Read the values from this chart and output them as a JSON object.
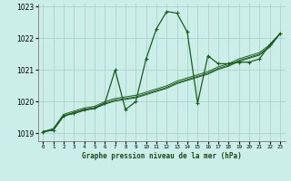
{
  "title": "Graphe pression niveau de la mer (hPa)",
  "background_color": "#cceee8",
  "grid_color": "#aad4ce",
  "line_color": "#1a5c1a",
  "x_values": [
    0,
    1,
    2,
    3,
    4,
    5,
    6,
    7,
    8,
    9,
    10,
    11,
    12,
    13,
    14,
    15,
    16,
    17,
    18,
    19,
    20,
    21,
    22,
    23
  ],
  "series1": [
    1019.05,
    1019.1,
    1019.55,
    1019.65,
    1019.75,
    1019.8,
    1019.95,
    1021.0,
    1019.75,
    1020.0,
    1021.35,
    1022.3,
    1022.85,
    1022.8,
    1022.2,
    1019.95,
    1021.45,
    1021.2,
    1021.2,
    1021.25,
    1021.25,
    1021.35,
    1021.8,
    1022.15
  ],
  "series2": [
    1019.05,
    1019.1,
    1019.55,
    1019.65,
    1019.75,
    1019.8,
    1019.95,
    1020.05,
    1020.1,
    1020.15,
    1020.25,
    1020.35,
    1020.45,
    1020.6,
    1020.7,
    1020.8,
    1020.9,
    1021.05,
    1021.15,
    1021.3,
    1021.4,
    1021.5,
    1021.75,
    1022.15
  ],
  "series3": [
    1019.05,
    1019.15,
    1019.6,
    1019.7,
    1019.8,
    1019.85,
    1020.0,
    1020.1,
    1020.15,
    1020.2,
    1020.3,
    1020.4,
    1020.5,
    1020.65,
    1020.75,
    1020.85,
    1020.95,
    1021.1,
    1021.2,
    1021.35,
    1021.45,
    1021.55,
    1021.8,
    1022.15
  ],
  "series4": [
    1019.05,
    1019.1,
    1019.55,
    1019.62,
    1019.72,
    1019.78,
    1019.92,
    1020.02,
    1020.07,
    1020.12,
    1020.22,
    1020.32,
    1020.42,
    1020.57,
    1020.67,
    1020.77,
    1020.87,
    1021.02,
    1021.12,
    1021.27,
    1021.37,
    1021.47,
    1021.72,
    1022.15
  ],
  "ylim": [
    1018.75,
    1023.1
  ],
  "yticks": [
    1019,
    1020,
    1021,
    1022,
    1023
  ],
  "xlim": [
    -0.5,
    23.5
  ]
}
